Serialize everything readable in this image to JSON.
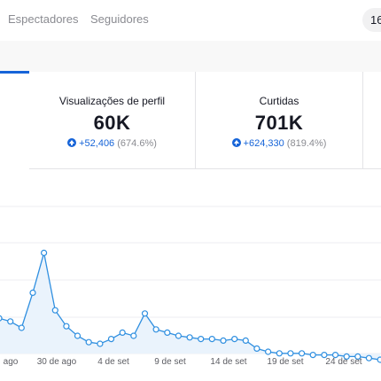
{
  "header": {
    "tabs": [
      {
        "label": "Espectadores"
      },
      {
        "label": "Seguidores"
      }
    ],
    "range_label": "16"
  },
  "metrics": [
    {
      "label": "Visualizações de perfil",
      "value": "60K",
      "change_abs": "+52,406",
      "change_pct": "(674.6%)"
    },
    {
      "label": "Curtidas",
      "value": "701K",
      "change_abs": "+624,330",
      "change_pct": "(819.4%)"
    }
  ],
  "colors": {
    "accent": "#1664d8",
    "line": "#2f8fe0",
    "area": "#eaf3fc"
  },
  "chart_data": {
    "type": "area",
    "x_tick_labels": [
      "ago",
      "30 de ago",
      "4 de set",
      "9 de set",
      "14 de set",
      "19 de set",
      "24 de set"
    ],
    "values": [
      16,
      14,
      10,
      32,
      57,
      21,
      11,
      5,
      1,
      0,
      3,
      7,
      5,
      19,
      9,
      7,
      5,
      4,
      3,
      3,
      2,
      3,
      2,
      -3,
      -5,
      -6,
      -6,
      -6,
      -7,
      -7,
      -7,
      -8,
      -8,
      -9,
      -10
    ],
    "grid": true
  }
}
